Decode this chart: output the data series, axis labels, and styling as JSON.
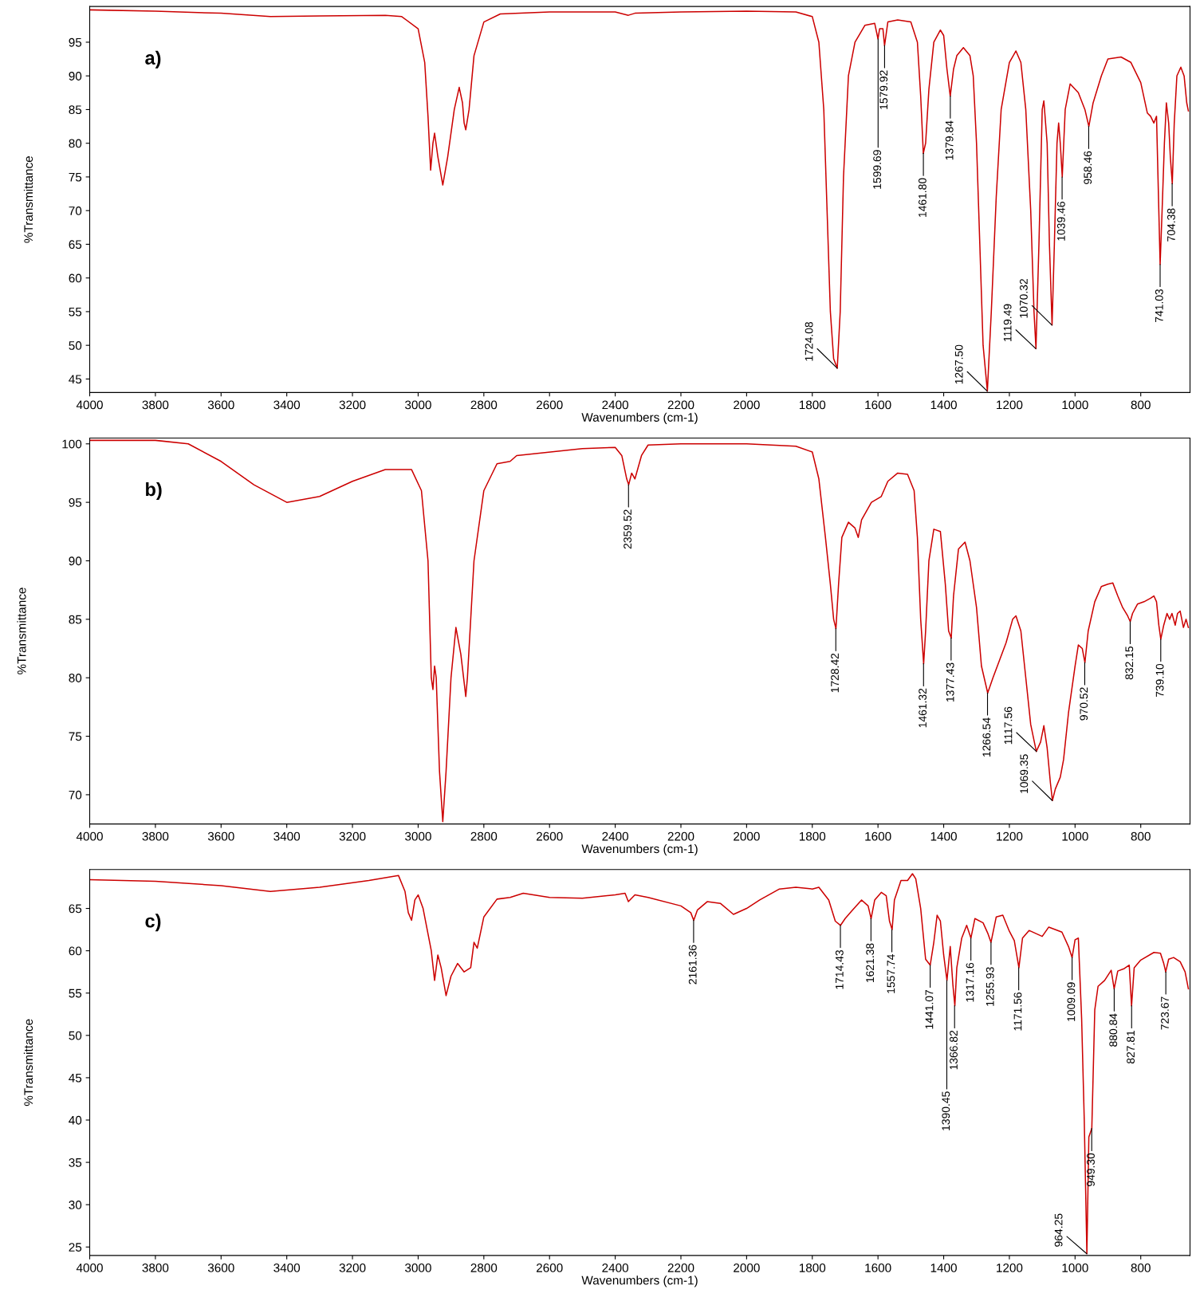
{
  "chart_data": [
    {
      "type": "line",
      "xlabel": "Wavenumbers (cm-1)",
      "ylabel": "%Transmittance",
      "xlim": [
        4000,
        650
      ],
      "ylim": [
        43,
        100.3
      ],
      "xticks": [
        4000,
        3800,
        3600,
        3400,
        3200,
        3000,
        2800,
        2600,
        2400,
        2200,
        2000,
        1800,
        1600,
        1400,
        1200,
        1000,
        800
      ],
      "yticks": [
        45,
        50,
        55,
        60,
        65,
        70,
        75,
        80,
        85,
        90,
        95
      ],
      "grid": false,
      "legend": false,
      "series": [
        {
          "color": "#cc0000",
          "x": [
            4000,
            3800,
            3600,
            3450,
            3300,
            3100,
            3050,
            3000,
            2980,
            2970,
            2962,
            2955,
            2950,
            2940,
            2925,
            2910,
            2890,
            2875,
            2865,
            2860,
            2855,
            2845,
            2830,
            2800,
            2750,
            2600,
            2400,
            2360,
            2340,
            2200,
            2000,
            1850,
            1800,
            1780,
            1765,
            1755,
            1745,
            1735,
            1724,
            1715,
            1705,
            1690,
            1670,
            1640,
            1610,
            1600,
            1595,
            1585,
            1580,
            1570,
            1540,
            1500,
            1480,
            1470,
            1462,
            1455,
            1445,
            1430,
            1410,
            1400,
            1390,
            1380,
            1370,
            1360,
            1340,
            1320,
            1310,
            1300,
            1290,
            1280,
            1267,
            1255,
            1240,
            1225,
            1200,
            1180,
            1165,
            1150,
            1135,
            1125,
            1119,
            1110,
            1100,
            1095,
            1085,
            1078,
            1070,
            1063,
            1055,
            1050,
            1045,
            1039,
            1030,
            1015,
            990,
            970,
            958,
            945,
            920,
            900,
            860,
            830,
            800,
            780,
            770,
            760,
            752,
            745,
            741,
            735,
            728,
            722,
            715,
            710,
            704,
            698,
            690,
            678,
            668,
            660,
            655
          ],
          "values": [
            99.8,
            99.6,
            99.3,
            98.8,
            98.9,
            99.0,
            98.8,
            97,
            92,
            84,
            76,
            80,
            81.5,
            78,
            73.8,
            78,
            85,
            88.3,
            86,
            83,
            82,
            85,
            93,
            98,
            99.2,
            99.5,
            99.5,
            99.0,
            99.3,
            99.5,
            99.6,
            99.5,
            98.8,
            95,
            85,
            70,
            55,
            48,
            46.6,
            55,
            75,
            90,
            95,
            97.5,
            97.8,
            95.5,
            97,
            97,
            94.5,
            98,
            98.3,
            98,
            95,
            87,
            78.5,
            80,
            88,
            95,
            96.8,
            96,
            91,
            87,
            91,
            93,
            94.2,
            93,
            90,
            80,
            65,
            50,
            43.2,
            55,
            72,
            85,
            92,
            93.7,
            92,
            85,
            70,
            55,
            49.5,
            65,
            85,
            86.3,
            80,
            65,
            53,
            65,
            80,
            83,
            80,
            75,
            85,
            88.8,
            87.5,
            85,
            82.5,
            86,
            90,
            92.5,
            92.8,
            92,
            89,
            84.5,
            84,
            83,
            84,
            70,
            62,
            70,
            80,
            86,
            83,
            78,
            74,
            83,
            90,
            91.3,
            90,
            86,
            84.8
          ]
        }
      ],
      "annotations": [
        "a)",
        {
          "text": "1724.08",
          "x": 1724.08,
          "y": 46.6
        },
        {
          "text": "1599.69",
          "x": 1599.69,
          "y": 95.5
        },
        {
          "text": "1579.92",
          "x": 1579.92,
          "y": 94.5
        },
        {
          "text": "1461.80",
          "x": 1461.8,
          "y": 78.5
        },
        {
          "text": "1379.84",
          "x": 1379.84,
          "y": 87
        },
        {
          "text": "1267.50",
          "x": 1267.5,
          "y": 43.2
        },
        {
          "text": "1119.49",
          "x": 1119.49,
          "y": 49.5
        },
        {
          "text": "1070.32",
          "x": 1070.32,
          "y": 53
        },
        {
          "text": "1039.46",
          "x": 1039.46,
          "y": 75
        },
        {
          "text": "958.46",
          "x": 958.46,
          "y": 82.5
        },
        {
          "text": "741.03",
          "x": 741.03,
          "y": 62
        },
        {
          "text": "704.38",
          "x": 704.38,
          "y": 74
        }
      ]
    },
    {
      "type": "line",
      "xlabel": "Wavenumbers (cm-1)",
      "ylabel": "%Transmittance",
      "xlim": [
        4000,
        650
      ],
      "ylim": [
        67.5,
        100.5
      ],
      "xticks": [
        4000,
        3800,
        3600,
        3400,
        3200,
        3000,
        2800,
        2600,
        2400,
        2200,
        2000,
        1800,
        1600,
        1400,
        1200,
        1000,
        800
      ],
      "yticks": [
        70,
        75,
        80,
        85,
        90,
        95,
        100
      ],
      "grid": false,
      "legend": false,
      "series": [
        {
          "color": "#cc0000",
          "x": [
            4000,
            3800,
            3700,
            3600,
            3500,
            3400,
            3300,
            3200,
            3100,
            3020,
            2990,
            2970,
            2960,
            2955,
            2950,
            2945,
            2935,
            2925,
            2915,
            2900,
            2885,
            2870,
            2855,
            2850,
            2830,
            2800,
            2760,
            2720,
            2700,
            2500,
            2400,
            2380,
            2365,
            2359,
            2350,
            2340,
            2320,
            2300,
            2200,
            2000,
            1850,
            1800,
            1780,
            1760,
            1745,
            1735,
            1728,
            1720,
            1710,
            1690,
            1670,
            1660,
            1650,
            1620,
            1590,
            1570,
            1540,
            1510,
            1490,
            1480,
            1470,
            1461,
            1455,
            1445,
            1430,
            1410,
            1395,
            1385,
            1377,
            1370,
            1355,
            1335,
            1320,
            1300,
            1285,
            1266,
            1250,
            1230,
            1210,
            1190,
            1180,
            1165,
            1150,
            1135,
            1118,
            1105,
            1095,
            1085,
            1075,
            1069,
            1060,
            1045,
            1035,
            1020,
            1000,
            990,
            978,
            970,
            960,
            940,
            920,
            900,
            885,
            870,
            855,
            840,
            832,
            825,
            810,
            790,
            770,
            760,
            752,
            745,
            739,
            730,
            720,
            712,
            705,
            695,
            688,
            680,
            670,
            662,
            655
          ],
          "values": [
            100.3,
            100.3,
            100,
            98.5,
            96.5,
            95,
            95.5,
            96.8,
            97.8,
            97.8,
            96,
            90,
            80,
            79,
            81,
            80,
            72,
            67.7,
            72,
            80,
            84.3,
            82,
            78.4,
            80,
            90,
            96,
            98.3,
            98.5,
            99,
            99.6,
            99.7,
            99,
            97,
            96.5,
            97.5,
            97,
            99,
            99.9,
            100,
            100,
            99.8,
            99.3,
            97,
            92,
            88,
            85,
            84.2,
            88,
            92,
            93.3,
            92.8,
            92,
            93.5,
            95,
            95.5,
            96.8,
            97.5,
            97.4,
            96,
            92,
            85,
            81.2,
            84,
            90,
            92.7,
            92.5,
            88,
            84,
            83.4,
            87,
            91,
            91.6,
            90,
            86,
            81,
            78.7,
            80,
            81.5,
            83,
            85,
            85.3,
            84,
            80,
            76,
            73.7,
            74.5,
            75.9,
            74,
            71,
            69.5,
            70.5,
            71.5,
            73,
            77,
            81,
            82.8,
            82.5,
            81.3,
            84,
            86.5,
            87.8,
            88,
            88.1,
            87,
            86,
            85.3,
            84.8,
            85.5,
            86.3,
            86.5,
            86.8,
            87,
            86.5,
            84.5,
            83.3,
            84.5,
            85.5,
            85,
            85.5,
            84.5,
            85.5,
            85.7,
            84.3,
            85,
            84.3
          ]
        }
      ],
      "annotations": [
        "b)",
        {
          "text": "2359.52",
          "x": 2359.52,
          "y": 96.5
        },
        {
          "text": "1728.42",
          "x": 1728.42,
          "y": 84.2
        },
        {
          "text": "1461.32",
          "x": 1461.32,
          "y": 81.2
        },
        {
          "text": "1377.43",
          "x": 1377.43,
          "y": 83.4
        },
        {
          "text": "1266.54",
          "x": 1266.54,
          "y": 78.7
        },
        {
          "text": "1117.56",
          "x": 1117.56,
          "y": 73.7
        },
        {
          "text": "1069.35",
          "x": 1069.35,
          "y": 69.5
        },
        {
          "text": "970.52",
          "x": 970.52,
          "y": 81.3
        },
        {
          "text": "832.15",
          "x": 832.15,
          "y": 84.8
        },
        {
          "text": "739.10",
          "x": 739.1,
          "y": 83.3
        }
      ]
    },
    {
      "type": "line",
      "xlabel": "Wavenumbers (cm-1)",
      "ylabel": "%Transmittance",
      "xlim": [
        4000,
        650
      ],
      "ylim": [
        24,
        69.6
      ],
      "xticks": [
        4000,
        3800,
        3600,
        3400,
        3200,
        3000,
        2800,
        2600,
        2400,
        2200,
        2000,
        1800,
        1600,
        1400,
        1200,
        1000,
        800
      ],
      "yticks": [
        25,
        30,
        35,
        40,
        45,
        50,
        55,
        60,
        65
      ],
      "grid": false,
      "legend": false,
      "series": [
        {
          "color": "#cc0000",
          "x": [
            4000,
            3800,
            3600,
            3450,
            3300,
            3150,
            3060,
            3040,
            3030,
            3020,
            3010,
            3000,
            2985,
            2960,
            2950,
            2940,
            2930,
            2915,
            2900,
            2880,
            2860,
            2840,
            2830,
            2820,
            2800,
            2760,
            2720,
            2680,
            2600,
            2500,
            2400,
            2370,
            2360,
            2340,
            2300,
            2200,
            2170,
            2161,
            2150,
            2120,
            2080,
            2040,
            2000,
            1960,
            1900,
            1850,
            1800,
            1780,
            1750,
            1730,
            1714,
            1700,
            1680,
            1650,
            1630,
            1621,
            1610,
            1590,
            1575,
            1565,
            1557,
            1550,
            1530,
            1510,
            1495,
            1485,
            1470,
            1455,
            1441,
            1430,
            1420,
            1410,
            1400,
            1390,
            1380,
            1372,
            1366,
            1360,
            1345,
            1330,
            1317,
            1305,
            1280,
            1265,
            1256,
            1240,
            1220,
            1200,
            1185,
            1171,
            1160,
            1140,
            1100,
            1080,
            1040,
            1020,
            1009,
            1000,
            990,
            980,
            972,
            964,
            958,
            949,
            940,
            930,
            910,
            890,
            881,
            870,
            850,
            835,
            828,
            820,
            800,
            760,
            740,
            730,
            724,
            715,
            700,
            680,
            665,
            655
          ],
          "values": [
            68.4,
            68.2,
            67.7,
            67,
            67.5,
            68.3,
            68.9,
            67,
            64.5,
            63.6,
            66,
            66.6,
            65,
            60,
            56.5,
            59.5,
            58,
            54.7,
            57,
            58.5,
            57.5,
            58,
            61,
            60.3,
            64,
            66.1,
            66.3,
            66.8,
            66.3,
            66.2,
            66.6,
            66.8,
            65.8,
            66.6,
            66.3,
            65.3,
            64.5,
            63.6,
            64.8,
            65.8,
            65.6,
            64.3,
            65.0,
            66,
            67.3,
            67.5,
            67.3,
            67.5,
            66,
            63.5,
            63,
            63.8,
            64.7,
            66,
            65.3,
            63.8,
            66,
            66.9,
            66.5,
            63.5,
            62.5,
            66,
            68.3,
            68.3,
            69.1,
            68.5,
            65,
            59,
            58.3,
            61,
            64.2,
            63.5,
            59.5,
            56.5,
            60.5,
            56,
            53.5,
            58,
            61.5,
            63,
            61.5,
            63.8,
            63.3,
            62,
            61,
            64,
            64.2,
            62.3,
            61.2,
            58,
            61.5,
            62.4,
            61.7,
            62.8,
            62.2,
            60.5,
            59.2,
            61.3,
            61.5,
            52,
            40,
            24.2,
            38,
            39,
            53,
            55.8,
            56.5,
            57.7,
            55.5,
            57.6,
            57.9,
            58.3,
            53.5,
            58,
            58.9,
            59.8,
            59.7,
            58.5,
            57.5,
            59,
            59.2,
            58.7,
            57.5,
            55.5
          ]
        }
      ],
      "annotations": [
        "c)",
        {
          "text": "2161.36",
          "x": 2161.36,
          "y": 63.6
        },
        {
          "text": "1714.43",
          "x": 1714.43,
          "y": 63
        },
        {
          "text": "1621.38",
          "x": 1621.38,
          "y": 63.8
        },
        {
          "text": "1557.74",
          "x": 1557.74,
          "y": 62.5
        },
        {
          "text": "1441.07",
          "x": 1441.07,
          "y": 58.3
        },
        {
          "text": "1390.45",
          "x": 1390.45,
          "y": 56.5
        },
        {
          "text": "1366.82",
          "x": 1366.82,
          "y": 53.5
        },
        {
          "text": "1317.16",
          "x": 1317.16,
          "y": 61.5
        },
        {
          "text": "1255.93",
          "x": 1255.93,
          "y": 61
        },
        {
          "text": "1171.56",
          "x": 1171.56,
          "y": 58
        },
        {
          "text": "1009.09",
          "x": 1009.09,
          "y": 59.2
        },
        {
          "text": "964.25",
          "x": 964.25,
          "y": 24.2
        },
        {
          "text": "949.30",
          "x": 949.3,
          "y": 39
        },
        {
          "text": "880.84",
          "x": 880.84,
          "y": 55.5
        },
        {
          "text": "827.81",
          "x": 827.81,
          "y": 53.5
        },
        {
          "text": "723.67",
          "x": 723.67,
          "y": 57.5
        }
      ]
    }
  ]
}
